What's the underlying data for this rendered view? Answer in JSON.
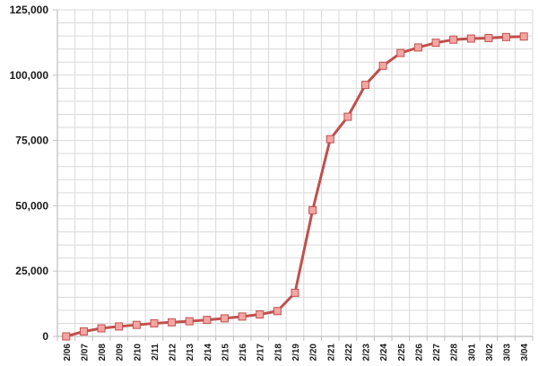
{
  "chart_data": {
    "type": "line",
    "title": "",
    "xlabel": "",
    "ylabel": "",
    "ylim": [
      0,
      125000
    ],
    "yticks": [
      0,
      25000,
      50000,
      75000,
      100000,
      125000
    ],
    "ytick_labels": [
      "0",
      "25,000",
      "50,000",
      "75,000",
      "100,000",
      "125,000"
    ],
    "grid": true,
    "legend": "none",
    "colors": {
      "line": "#c0504d",
      "marker_fill": "#f4a6a3",
      "grid": "#d9d9d9",
      "axis": "#bfbfbf"
    },
    "categories": [
      "2/06",
      "2/07",
      "2/08",
      "2/09",
      "2/10",
      "2/11",
      "2/12",
      "2/13",
      "2/14",
      "2/15",
      "2/16",
      "2/17",
      "2/18",
      "2/19",
      "2/20",
      "2/21",
      "2/22",
      "2/23",
      "2/24",
      "2/25",
      "2/26",
      "2/27",
      "2/28",
      "3/01",
      "3/02",
      "3/03",
      "3/04"
    ],
    "series": [
      {
        "values": [
          0,
          1900,
          3100,
          3800,
          4400,
          5000,
          5400,
          5800,
          6300,
          6900,
          7600,
          8400,
          9700,
          16700,
          48300,
          75500,
          84100,
          96300,
          103600,
          108500,
          110600,
          112400,
          113600,
          114000,
          114200,
          114600,
          114800
        ]
      }
    ]
  }
}
